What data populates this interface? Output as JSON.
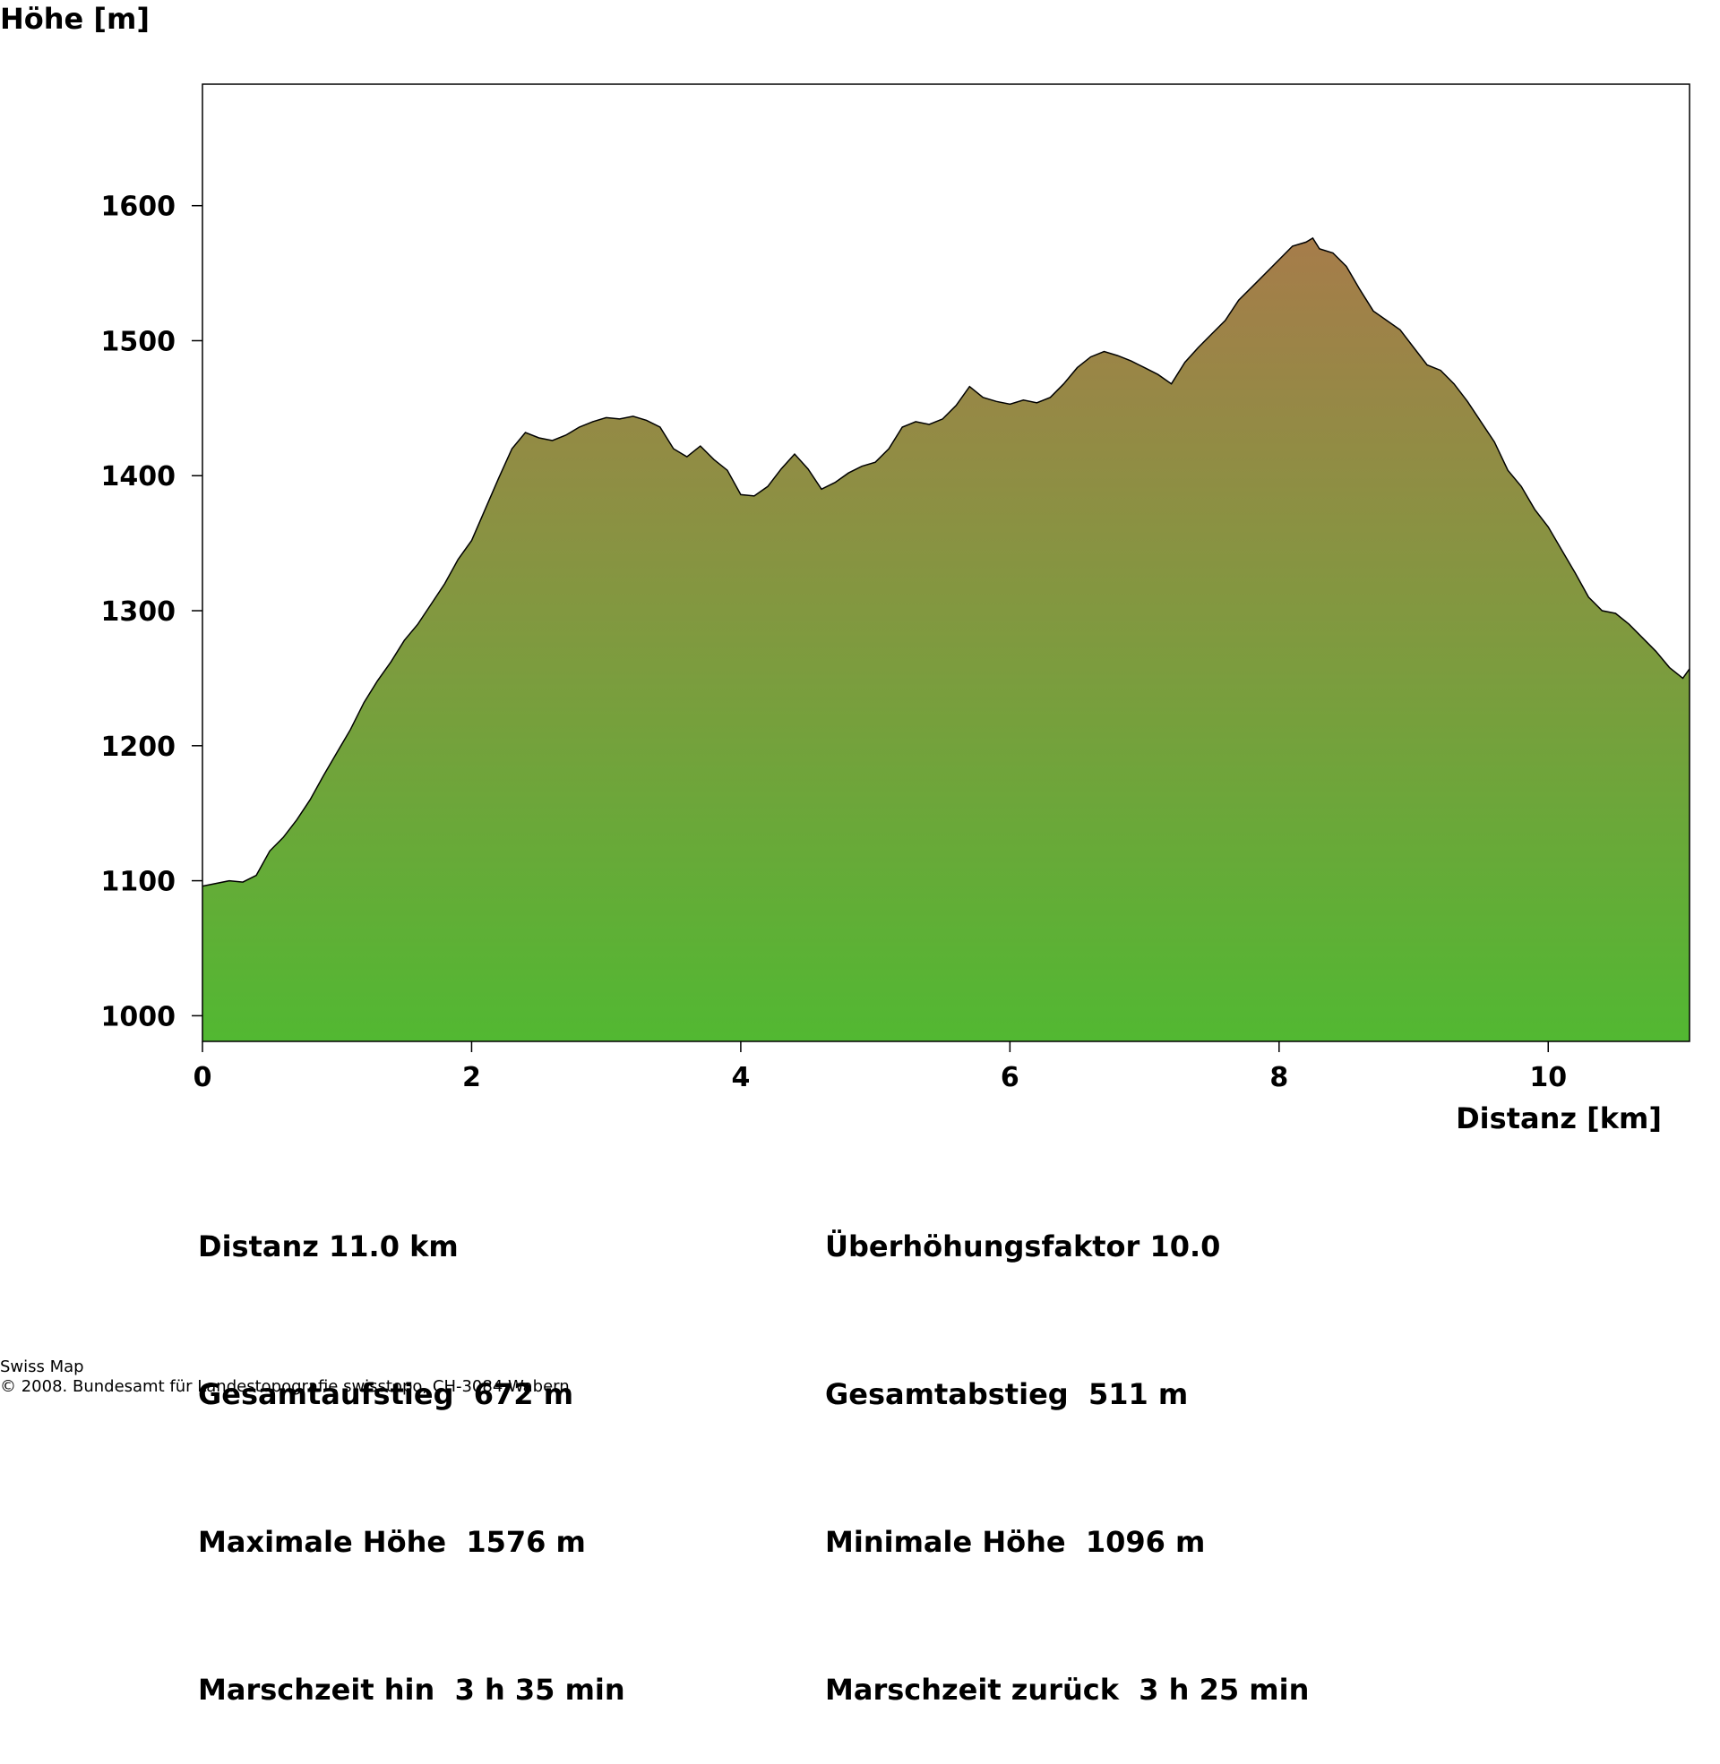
{
  "chart_data": {
    "type": "area",
    "title": "",
    "xlabel": "Distanz [km]",
    "ylabel": "Höhe [m]",
    "xlim": [
      0,
      11.05
    ],
    "ylim": [
      981,
      1690
    ],
    "xticks": [
      0,
      2,
      4,
      6,
      8,
      10
    ],
    "yticks": [
      1000,
      1100,
      1200,
      1300,
      1400,
      1500,
      1600
    ],
    "grid": false,
    "legend": "none",
    "colors": {
      "top": "#a67c4a",
      "middle": "#7f9a3f",
      "bottom": "#52b832",
      "stroke": "#000000"
    },
    "series": [
      {
        "x": [
          0,
          0.1,
          0.2,
          0.3,
          0.4,
          0.5,
          0.6,
          0.7,
          0.8,
          0.9,
          1.0,
          1.1,
          1.2,
          1.3,
          1.4,
          1.5,
          1.6,
          1.7,
          1.8,
          1.9,
          2.0,
          2.1,
          2.2,
          2.3,
          2.4,
          2.5,
          2.6,
          2.7,
          2.8,
          2.9,
          3.0,
          3.1,
          3.2,
          3.3,
          3.4,
          3.5,
          3.6,
          3.7,
          3.8,
          3.9,
          4.0,
          4.1,
          4.2,
          4.3,
          4.4,
          4.5,
          4.6,
          4.7,
          4.8,
          4.9,
          5.0,
          5.1,
          5.2,
          5.3,
          5.4,
          5.5,
          5.6,
          5.7,
          5.8,
          5.9,
          6.0,
          6.1,
          6.2,
          6.3,
          6.4,
          6.5,
          6.6,
          6.7,
          6.8,
          6.9,
          7.0,
          7.1,
          7.2,
          7.3,
          7.4,
          7.5,
          7.6,
          7.7,
          7.8,
          7.9,
          8.0,
          8.1,
          8.2,
          8.25,
          8.3,
          8.4,
          8.5,
          8.6,
          8.7,
          8.8,
          8.9,
          9.0,
          9.1,
          9.2,
          9.3,
          9.4,
          9.5,
          9.6,
          9.7,
          9.8,
          9.9,
          10.0,
          10.1,
          10.2,
          10.3,
          10.4,
          10.5,
          10.6,
          10.7,
          10.8,
          10.9,
          11.0,
          11.05
        ],
        "y": [
          1096,
          1098,
          1100,
          1099,
          1104,
          1122,
          1132,
          1145,
          1160,
          1178,
          1195,
          1212,
          1232,
          1248,
          1262,
          1278,
          1290,
          1305,
          1320,
          1338,
          1352,
          1375,
          1398,
          1420,
          1432,
          1428,
          1426,
          1430,
          1436,
          1440,
          1443,
          1442,
          1444,
          1441,
          1436,
          1420,
          1414,
          1422,
          1412,
          1404,
          1386,
          1385,
          1392,
          1405,
          1416,
          1405,
          1390,
          1395,
          1402,
          1407,
          1410,
          1420,
          1436,
          1440,
          1438,
          1442,
          1452,
          1466,
          1458,
          1455,
          1453,
          1456,
          1454,
          1458,
          1468,
          1480,
          1488,
          1492,
          1489,
          1485,
          1480,
          1475,
          1468,
          1484,
          1495,
          1505,
          1515,
          1530,
          1540,
          1550,
          1560,
          1570,
          1573,
          1576,
          1568,
          1565,
          1555,
          1538,
          1522,
          1515,
          1508,
          1495,
          1482,
          1478,
          1468,
          1455,
          1440,
          1425,
          1404,
          1392,
          1375,
          1362,
          1345,
          1328,
          1310,
          1300,
          1298,
          1290,
          1280,
          1270,
          1258,
          1250,
          1257
        ]
      }
    ]
  },
  "stats_left": [
    "Distanz 11.0 km",
    "Gesamtaufstieg  672 m",
    "Maximale Höhe  1576 m",
    "Marschzeit hin  3 h 35 min"
  ],
  "stats_right": [
    "Überhöhungsfaktor 10.0",
    "Gesamtabstieg  511 m",
    "Minimale Höhe  1096 m",
    "Marschzeit zurück  3 h 25 min"
  ],
  "footer": {
    "line1": "Swiss Map",
    "line2": "© 2008. Bundesamt für Landestopografie swisstopo, CH-3084 Wabern"
  }
}
